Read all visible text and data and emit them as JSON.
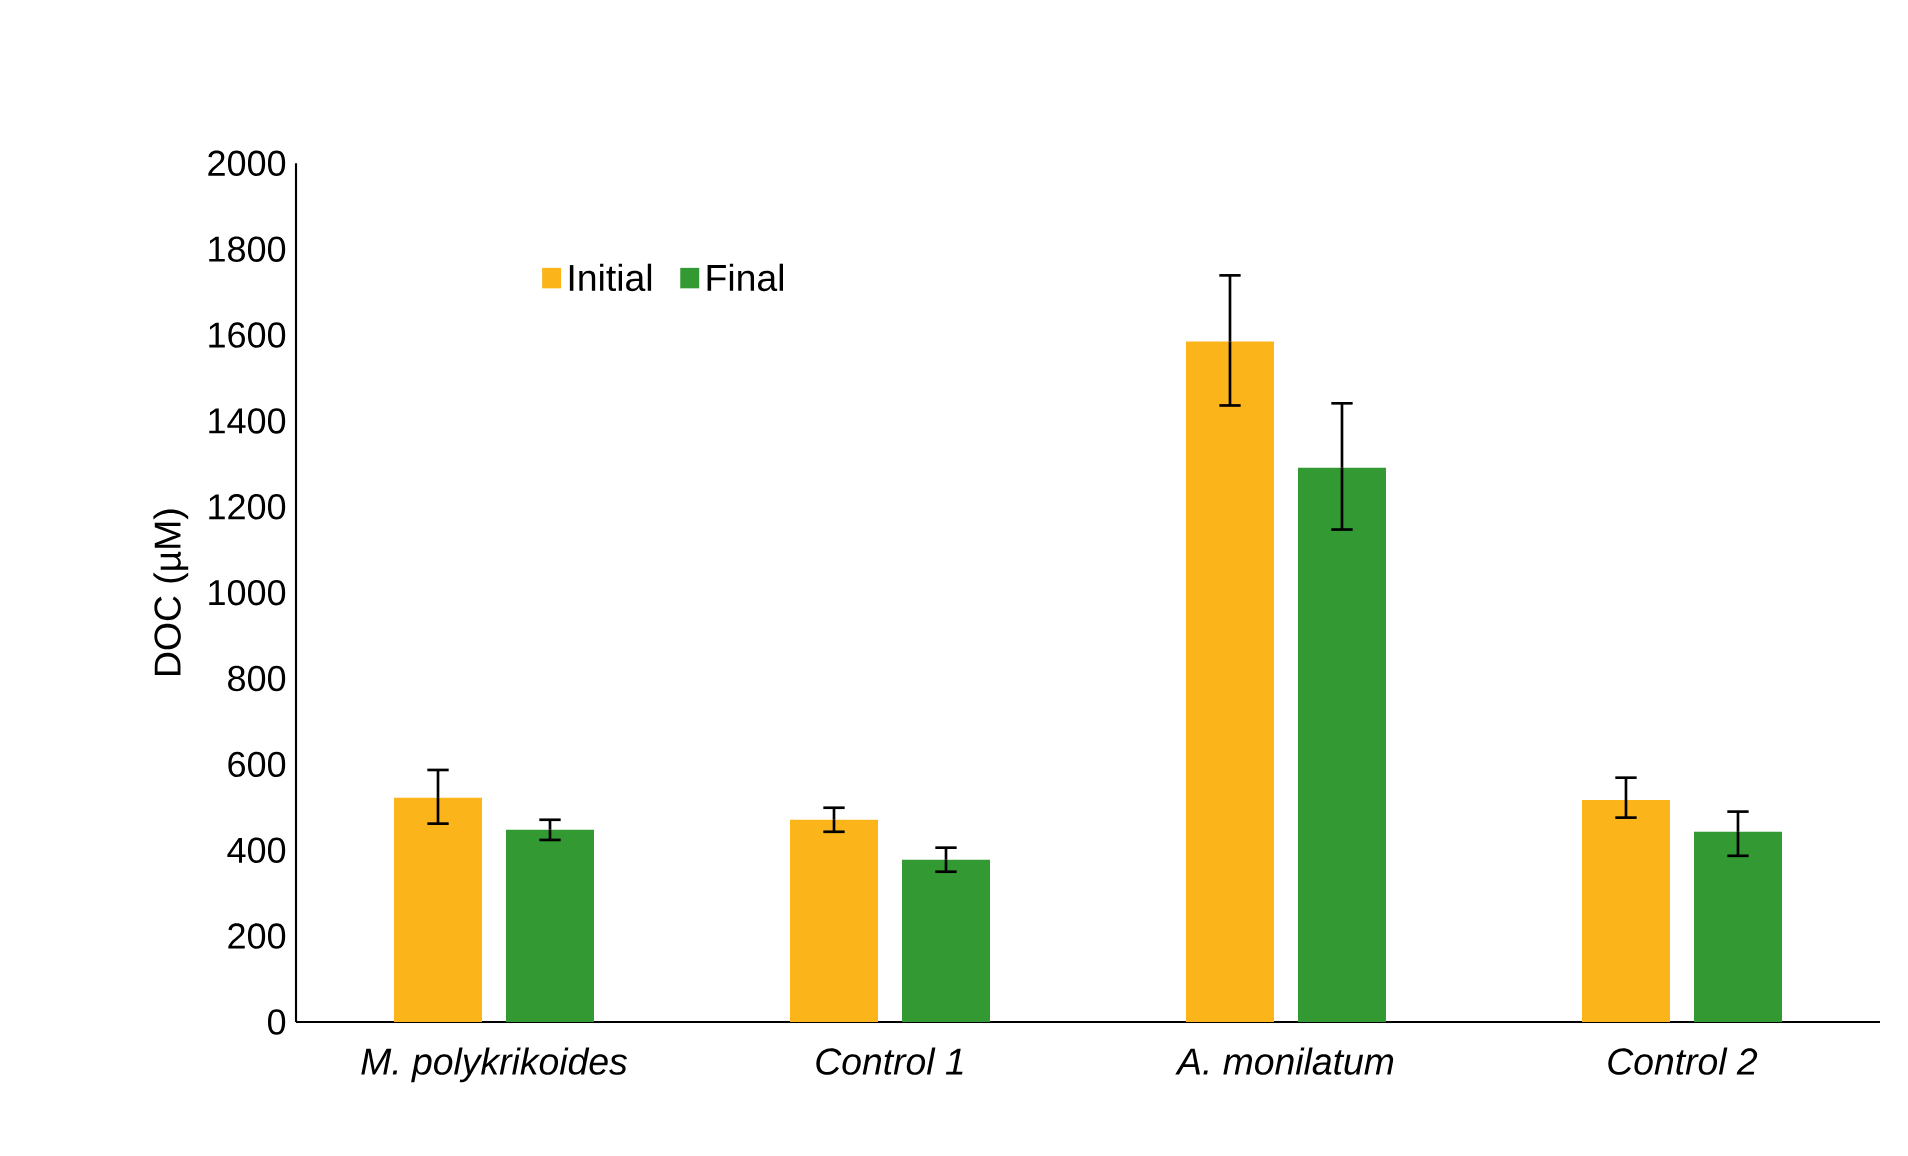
{
  "chart_data": {
    "type": "bar",
    "ylabel": "DOC (µM)",
    "categories": [
      "M. polykrikoides",
      "Control 1",
      "A. monilatum",
      "Control 2"
    ],
    "series": [
      {
        "name": "Initial",
        "color": "#fbb41a",
        "values": [
          522,
          471,
          1585,
          517
        ],
        "errors": [
          [
            462,
            587
          ],
          [
            443,
            499
          ],
          [
            1436,
            1739
          ],
          [
            476,
            569
          ]
        ]
      },
      {
        "name": "Final",
        "color": "#339933",
        "values": [
          448,
          378,
          1291,
          443
        ],
        "errors": [
          [
            424,
            471
          ],
          [
            350,
            406
          ],
          [
            1147,
            1441
          ],
          [
            387,
            490
          ]
        ]
      }
    ],
    "ylim": [
      0,
      2000
    ],
    "yticks": [
      0,
      200,
      400,
      600,
      800,
      1000,
      1200,
      1400,
      1600,
      1800,
      2000
    ],
    "legend": "top left",
    "grid": false
  }
}
